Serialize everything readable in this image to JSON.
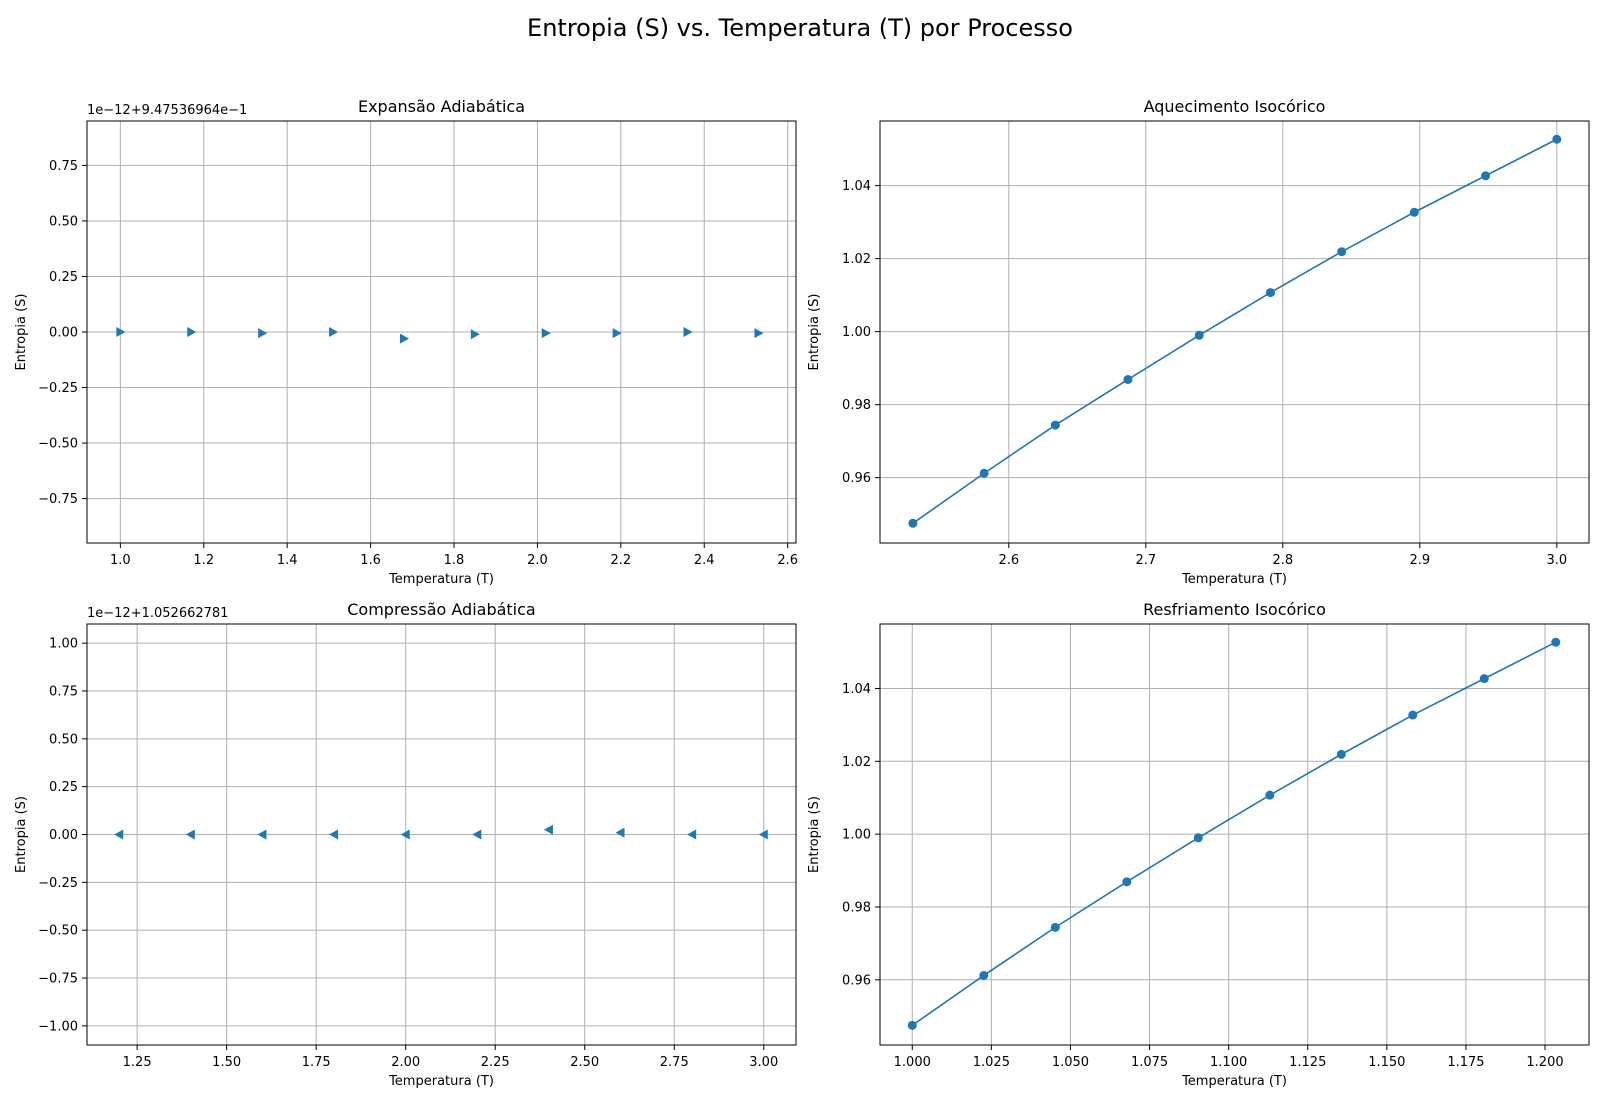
{
  "figure": {
    "title": "Entropia (S) vs. Temperatura (T) por Processo"
  },
  "style": {
    "series_color": "#1f77b4",
    "grid_color": "#b0b0b0",
    "axis_color": "#000000"
  },
  "chart_data": [
    {
      "type": "scatter",
      "title": "Expansão Adiabática",
      "xlabel": "Temperatura (T)",
      "ylabel": "Entropia (S)",
      "offset_label": "1e−12+9.47536964e−1",
      "xlim": [
        0.92,
        2.62
      ],
      "ylim": [
        -0.95,
        0.95
      ],
      "xticks": [
        1.0,
        1.2,
        1.4,
        1.6,
        1.8,
        2.0,
        2.2,
        2.4,
        2.6
      ],
      "xtick_labels": [
        "1.0",
        "1.2",
        "1.4",
        "1.6",
        "1.8",
        "2.0",
        "2.2",
        "2.4",
        "2.6"
      ],
      "yticks": [
        -0.75,
        -0.5,
        -0.25,
        0.0,
        0.25,
        0.5,
        0.75
      ],
      "ytick_labels": [
        "−0.75",
        "−0.50",
        "−0.25",
        "0.00",
        "0.25",
        "0.50",
        "0.75"
      ],
      "grid": true,
      "marker": "triangle-right",
      "line": false,
      "x": [
        1.0,
        1.17,
        1.34,
        1.51,
        1.68,
        1.85,
        2.02,
        2.19,
        2.36,
        2.53
      ],
      "y": [
        0.0,
        0.0,
        -0.005,
        0.0,
        -0.03,
        -0.01,
        -0.005,
        -0.005,
        0.0,
        -0.005
      ]
    },
    {
      "type": "line",
      "title": "Aquecimento Isocórico",
      "xlabel": "Temperatura (T)",
      "ylabel": "Entropia (S)",
      "offset_label": "",
      "xlim": [
        2.506,
        3.0235
      ],
      "ylim": [
        0.9421,
        1.0577
      ],
      "xticks": [
        2.6,
        2.7,
        2.8,
        2.9,
        3.0
      ],
      "xtick_labels": [
        "2.6",
        "2.7",
        "2.8",
        "2.9",
        "3.0"
      ],
      "yticks": [
        0.96,
        0.98,
        1.0,
        1.02,
        1.04
      ],
      "ytick_labels": [
        "0.96",
        "0.98",
        "1.00",
        "1.02",
        "1.04"
      ],
      "grid": true,
      "marker": "circle",
      "line": true,
      "x": [
        2.53,
        2.582,
        2.634,
        2.687,
        2.739,
        2.791,
        2.843,
        2.896,
        2.948,
        3.0
      ],
      "y": [
        0.9475,
        0.9612,
        0.9744,
        0.9869,
        0.999,
        1.0107,
        1.0219,
        1.0327,
        1.0427,
        1.0527
      ]
    },
    {
      "type": "scatter",
      "title": "Compressão Adiabática",
      "xlabel": "Temperatura (T)",
      "ylabel": "Entropia (S)",
      "offset_label": "1e−12+1.052662781",
      "xlim": [
        1.11,
        3.09
      ],
      "ylim": [
        -1.1,
        1.1
      ],
      "xticks": [
        1.25,
        1.5,
        1.75,
        2.0,
        2.25,
        2.5,
        2.75,
        3.0
      ],
      "xtick_labels": [
        "1.25",
        "1.50",
        "1.75",
        "2.00",
        "2.25",
        "2.50",
        "2.75",
        "3.00"
      ],
      "yticks": [
        -1.0,
        -0.75,
        -0.5,
        -0.25,
        0.0,
        0.25,
        0.5,
        0.75,
        1.0
      ],
      "ytick_labels": [
        "−1.00",
        "−0.75",
        "−0.50",
        "−0.25",
        "0.00",
        "0.25",
        "0.50",
        "0.75",
        "1.00"
      ],
      "grid": true,
      "marker": "triangle-left",
      "line": false,
      "x": [
        1.2,
        1.4,
        1.6,
        1.8,
        2.0,
        2.2,
        2.4,
        2.6,
        2.8,
        3.0
      ],
      "y": [
        0.0,
        0.0,
        0.0,
        0.0,
        0.0,
        0.0,
        0.025,
        0.01,
        0.0,
        0.0
      ]
    },
    {
      "type": "line",
      "title": "Resfriamento Isocórico",
      "xlabel": "Temperatura (T)",
      "ylabel": "Entropia (S)",
      "offset_label": "",
      "xlim": [
        0.9898,
        1.2139
      ],
      "ylim": [
        0.9421,
        1.0577
      ],
      "xticks": [
        1.0,
        1.025,
        1.05,
        1.075,
        1.1,
        1.125,
        1.15,
        1.175,
        1.2
      ],
      "xtick_labels": [
        "1.000",
        "1.025",
        "1.050",
        "1.075",
        "1.100",
        "1.125",
        "1.150",
        "1.175",
        "1.200"
      ],
      "yticks": [
        0.96,
        0.98,
        1.0,
        1.02,
        1.04
      ],
      "ytick_labels": [
        "0.96",
        "0.98",
        "1.00",
        "1.02",
        "1.04"
      ],
      "grid": true,
      "marker": "circle",
      "line": true,
      "x": [
        1.0,
        1.0226,
        1.0452,
        1.0678,
        1.0904,
        1.113,
        1.1356,
        1.1582,
        1.1808,
        1.2034
      ],
      "y": [
        0.9475,
        0.9612,
        0.9744,
        0.9869,
        0.999,
        1.0107,
        1.0219,
        1.0327,
        1.0427,
        1.0527
      ]
    }
  ]
}
